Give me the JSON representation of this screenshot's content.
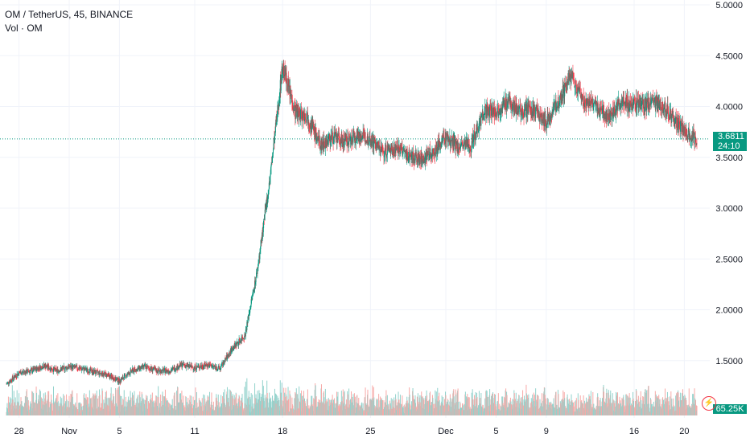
{
  "legend": {
    "symbol_line": "OM / TetherUS, 45, BINANCE",
    "volume_line": "Vol · OM"
  },
  "last_price": {
    "value": "3.6811",
    "countdown": "24:10"
  },
  "volume_badge": "65.25K",
  "colors": {
    "up": "#089981",
    "down": "#f23645",
    "up_volume": "#92d2cc",
    "down_volume": "#f7a9a7",
    "grid": "#f0f3fa",
    "axis_text": "#131722",
    "last_price_line": "#089981"
  },
  "chart_data": {
    "type": "candlestick",
    "y_axis": {
      "ticks": [
        "5.0000",
        "4.5000",
        "4.0000",
        "3.5000",
        "3.0000",
        "2.5000",
        "2.0000",
        "1.5000"
      ],
      "tick_values": [
        5.0,
        4.5,
        4.0,
        3.5,
        3.0,
        2.5,
        2.0,
        1.5
      ],
      "range": [
        1.0,
        5.0
      ]
    },
    "x_axis": {
      "tick_labels": [
        "28",
        "Nov",
        "5",
        "11",
        "18",
        "25",
        "Dec",
        "5",
        "9",
        "16",
        "20"
      ],
      "tick_dates": [
        "2024-10-28",
        "2024-11-01",
        "2024-11-05",
        "2024-11-11",
        "2024-11-18",
        "2024-11-25",
        "2024-12-01",
        "2024-12-05",
        "2024-12-09",
        "2024-12-16",
        "2024-12-20"
      ],
      "range": [
        "2024-10-27",
        "2024-12-21"
      ]
    },
    "price_path": [
      [
        "2024-10-27",
        1.27
      ],
      [
        "2024-10-28",
        1.38
      ],
      [
        "2024-10-29",
        1.4
      ],
      [
        "2024-10-30",
        1.45
      ],
      [
        "2024-10-31",
        1.4
      ],
      [
        "2024-11-01",
        1.44
      ],
      [
        "2024-11-02",
        1.42
      ],
      [
        "2024-11-03",
        1.39
      ],
      [
        "2024-11-04",
        1.36
      ],
      [
        "2024-11-05",
        1.3
      ],
      [
        "2024-11-06",
        1.4
      ],
      [
        "2024-11-07",
        1.44
      ],
      [
        "2024-11-08",
        1.4
      ],
      [
        "2024-11-09",
        1.4
      ],
      [
        "2024-11-10",
        1.46
      ],
      [
        "2024-11-11",
        1.43
      ],
      [
        "2024-11-12",
        1.46
      ],
      [
        "2024-11-13",
        1.42
      ],
      [
        "2024-11-14",
        1.62
      ],
      [
        "2024-11-15",
        1.75
      ],
      [
        "2024-11-16",
        2.4
      ],
      [
        "2024-11-17",
        3.3
      ],
      [
        "2024-11-18",
        4.4
      ],
      [
        "2024-11-19",
        3.95
      ],
      [
        "2024-11-20",
        3.9
      ],
      [
        "2024-11-21",
        3.62
      ],
      [
        "2024-11-22",
        3.7
      ],
      [
        "2024-11-23",
        3.65
      ],
      [
        "2024-11-24",
        3.72
      ],
      [
        "2024-11-25",
        3.68
      ],
      [
        "2024-11-26",
        3.55
      ],
      [
        "2024-11-27",
        3.6
      ],
      [
        "2024-11-28",
        3.52
      ],
      [
        "2024-11-29",
        3.48
      ],
      [
        "2024-11-30",
        3.55
      ],
      [
        "2024-12-01",
        3.7
      ],
      [
        "2024-12-02",
        3.6
      ],
      [
        "2024-12-03",
        3.62
      ],
      [
        "2024-12-04",
        3.95
      ],
      [
        "2024-12-05",
        3.95
      ],
      [
        "2024-12-06",
        4.05
      ],
      [
        "2024-12-07",
        3.95
      ],
      [
        "2024-12-08",
        3.97
      ],
      [
        "2024-12-09",
        3.85
      ],
      [
        "2024-12-10",
        4.05
      ],
      [
        "2024-12-11",
        4.3
      ],
      [
        "2024-12-12",
        4.05
      ],
      [
        "2024-12-13",
        4.0
      ],
      [
        "2024-12-14",
        3.9
      ],
      [
        "2024-12-15",
        4.05
      ],
      [
        "2024-12-16",
        4.02
      ],
      [
        "2024-12-17",
        4.02
      ],
      [
        "2024-12-18",
        4.05
      ],
      [
        "2024-12-19",
        3.9
      ],
      [
        "2024-12-20",
        3.75
      ],
      [
        "2024-12-21",
        3.68
      ]
    ],
    "last_price": 3.6811
  }
}
